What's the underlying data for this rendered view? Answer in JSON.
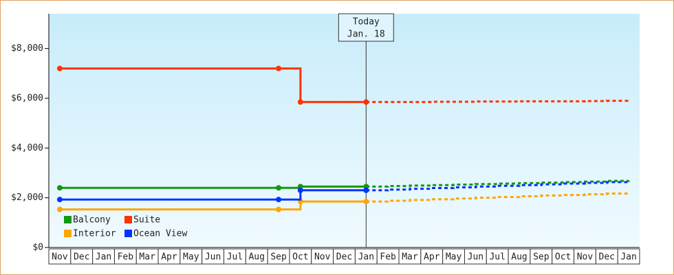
{
  "chart_data": {
    "type": "step-line",
    "categories": [
      "Nov",
      "Dec",
      "Jan",
      "Feb",
      "Mar",
      "Apr",
      "May",
      "Jun",
      "Jul",
      "Aug",
      "Sep",
      "Oct",
      "Nov",
      "Dec",
      "Jan",
      "Feb",
      "Mar",
      "Apr",
      "May",
      "Jun",
      "Jul",
      "Aug",
      "Sep",
      "Oct",
      "Nov",
      "Dec",
      "Jan"
    ],
    "ylim": [
      0,
      9400
    ],
    "yticks": [
      {
        "value": 0,
        "label": "$0"
      },
      {
        "value": 2000,
        "label": "$2,000"
      },
      {
        "value": 4000,
        "label": "$4,000"
      },
      {
        "value": 6000,
        "label": "$6,000"
      },
      {
        "value": 8000,
        "label": "$8,000"
      }
    ],
    "annotation": [
      "Today",
      "Jan. 18"
    ],
    "series": [
      {
        "name": "Balcony",
        "color": "#119911",
        "values": [
          2400,
          2400,
          2400,
          2400,
          2400,
          2400,
          2400,
          2400,
          2400,
          2400,
          2400,
          2450,
          2450,
          2450,
          2450,
          null,
          null,
          null,
          null,
          null,
          null,
          null,
          null,
          null,
          null,
          null,
          null
        ],
        "forecast": [
          null,
          null,
          null,
          null,
          null,
          null,
          null,
          null,
          null,
          null,
          null,
          null,
          null,
          null,
          2450,
          2470,
          2490,
          2510,
          2530,
          2550,
          2570,
          2590,
          2610,
          2630,
          2650,
          2680,
          2700
        ]
      },
      {
        "name": "Suite",
        "color": "#ff3300",
        "values": [
          7200,
          7200,
          7200,
          7200,
          7200,
          7200,
          7200,
          7200,
          7200,
          7200,
          7200,
          5850,
          5850,
          5850,
          5850,
          null,
          null,
          null,
          null,
          null,
          null,
          null,
          null,
          null,
          null,
          null,
          null
        ],
        "forecast": [
          null,
          null,
          null,
          null,
          null,
          null,
          null,
          null,
          null,
          null,
          null,
          null,
          null,
          null,
          5850,
          5850,
          5850,
          5860,
          5860,
          5870,
          5870,
          5880,
          5880,
          5880,
          5890,
          5900,
          5900
        ]
      },
      {
        "name": "Interior",
        "color": "#ffa500",
        "values": [
          1530,
          1530,
          1530,
          1530,
          1530,
          1530,
          1530,
          1530,
          1530,
          1530,
          1530,
          1850,
          1850,
          1850,
          1850,
          null,
          null,
          null,
          null,
          null,
          null,
          null,
          null,
          null,
          null,
          null,
          null
        ],
        "forecast": [
          null,
          null,
          null,
          null,
          null,
          null,
          null,
          null,
          null,
          null,
          null,
          null,
          null,
          null,
          1850,
          1880,
          1910,
          1940,
          1970,
          2000,
          2030,
          2060,
          2090,
          2110,
          2140,
          2170,
          2200
        ]
      },
      {
        "name": "Ocean View",
        "color": "#0033ff",
        "values": [
          1930,
          1930,
          1930,
          1930,
          1930,
          1930,
          1930,
          1930,
          1930,
          1930,
          1930,
          2300,
          2300,
          2300,
          2300,
          null,
          null,
          null,
          null,
          null,
          null,
          null,
          null,
          null,
          null,
          null,
          null
        ],
        "forecast": [
          null,
          null,
          null,
          null,
          null,
          null,
          null,
          null,
          null,
          null,
          null,
          null,
          null,
          null,
          2300,
          2330,
          2360,
          2390,
          2420,
          2450,
          2480,
          2510,
          2540,
          2570,
          2600,
          2630,
          2650
        ]
      }
    ]
  }
}
